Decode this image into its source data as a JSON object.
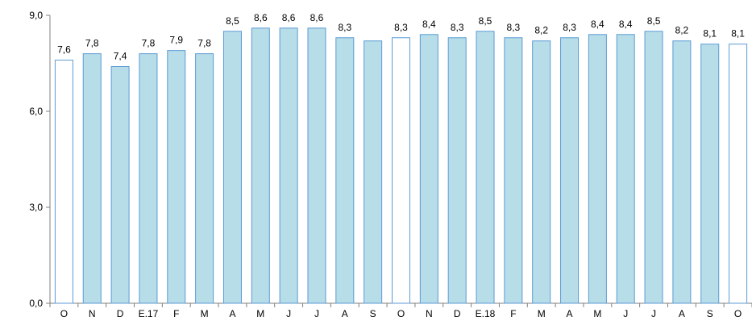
{
  "chart_data": {
    "type": "bar",
    "categories": [
      "O",
      "N",
      "D",
      "E.17",
      "F",
      "M",
      "A",
      "M",
      "J",
      "J",
      "A",
      "S",
      "O",
      "N",
      "D",
      "E.18",
      "F",
      "M",
      "A",
      "M",
      "J",
      "J",
      "A",
      "S",
      "O"
    ],
    "values": [
      7.6,
      7.8,
      7.4,
      7.8,
      7.9,
      7.8,
      8.5,
      8.6,
      8.6,
      8.6,
      8.3,
      8.2,
      8.3,
      8.4,
      8.3,
      8.5,
      8.3,
      8.2,
      8.3,
      8.4,
      8.4,
      8.5,
      8.2,
      8.1,
      8.1
    ],
    "data_labels": [
      "7,6",
      "7,8",
      "7,4",
      "7,8",
      "7,9",
      "7,8",
      "8,5",
      "8,6",
      "8,6",
      "8,6",
      "8,3",
      "",
      "8,3",
      "8,4",
      "8,3",
      "8,5",
      "8,3",
      "8,2",
      "8,3",
      "8,4",
      "8,4",
      "8,5",
      "8,2",
      "8,1",
      "8,1"
    ],
    "highlighted_indices": [
      0,
      12,
      24
    ],
    "y_ticks": [
      0,
      3,
      6,
      9
    ],
    "y_tick_labels": [
      "0,0",
      "3,0",
      "6,0",
      "9,0"
    ],
    "ylim": [
      0,
      9
    ],
    "title": "",
    "xlabel": "",
    "ylabel": "",
    "grid": false,
    "colors": {
      "bar_fill": "#b7dde8",
      "bar_stroke": "#5b9bd5",
      "highlight_fill": "#ffffff",
      "highlight_stroke": "#5b9bd5",
      "axis": "#808080"
    }
  }
}
